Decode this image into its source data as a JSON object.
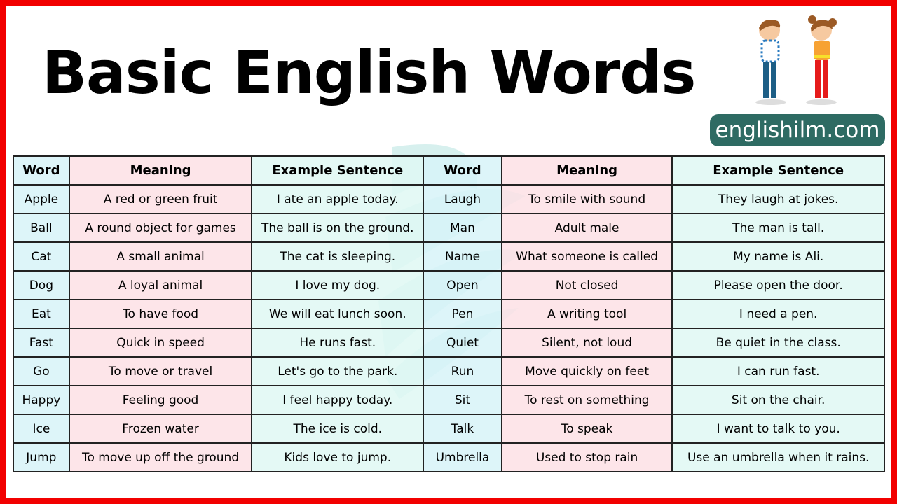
{
  "title": "Basic English Words",
  "site": "englishilm.com",
  "colors": {
    "border": "#f20000",
    "site_badge": "#2e6b63",
    "word_col": "#d7f3f8",
    "meaning_col": "#fde0e5",
    "example_col": "#dff8f3"
  },
  "table": {
    "headers": [
      "Word",
      "Meaning",
      "Example Sentence",
      "Word",
      "Meaning",
      "Example Sentence"
    ],
    "rows": [
      [
        "Apple",
        "A red or green fruit",
        "I ate an apple today.",
        "Laugh",
        "To smile with sound",
        "They laugh at jokes."
      ],
      [
        "Ball",
        "A round object for games",
        "The ball is on the ground.",
        "Man",
        "Adult male",
        "The man is tall."
      ],
      [
        "Cat",
        "A small animal",
        "The cat is sleeping.",
        "Name",
        "What someone is called",
        "My name is Ali."
      ],
      [
        "Dog",
        "A loyal animal",
        "I love my dog.",
        "Open",
        "Not closed",
        "Please open the door."
      ],
      [
        "Eat",
        "To have food",
        "We will eat lunch soon.",
        "Pen",
        "A writing tool",
        "I need a pen."
      ],
      [
        "Fast",
        "Quick in speed",
        "He runs fast.",
        "Quiet",
        "Silent, not loud",
        "Be quiet in the class."
      ],
      [
        "Go",
        "To move or travel",
        "Let's go to the park.",
        "Run",
        "Move quickly on feet",
        "I can run fast."
      ],
      [
        "Happy",
        "Feeling good",
        "I feel happy today.",
        "Sit",
        "To rest on something",
        "Sit on the chair."
      ],
      [
        "Ice",
        "Frozen water",
        "The ice is cold.",
        "Talk",
        "To speak",
        "I want to talk to you."
      ],
      [
        "Jump",
        "To move up off the ground",
        "Kids love to jump.",
        "Umbrella",
        "Used to stop rain",
        "Use an umbrella when it rains."
      ]
    ]
  }
}
